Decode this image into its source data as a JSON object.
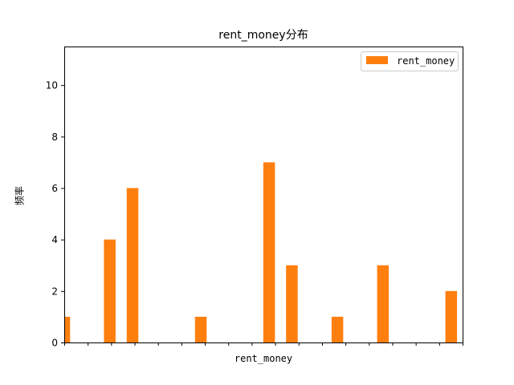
{
  "chart_data": {
    "type": "bar",
    "title": "rent_money分布",
    "xlabel": "rent_money",
    "ylabel": "频率",
    "ylim": [
      0,
      11.5
    ],
    "yticks": [
      0,
      2,
      4,
      6,
      8,
      10
    ],
    "grid": false,
    "legend_position": "top-right",
    "series": [
      {
        "name": "rent_money",
        "color": "#ff7f0e",
        "values": [
          1,
          0,
          4,
          6,
          0,
          0,
          1,
          0,
          0,
          7,
          3,
          0,
          1,
          0,
          3,
          0,
          0,
          2
        ]
      }
    ],
    "x_tick_count": 18
  }
}
